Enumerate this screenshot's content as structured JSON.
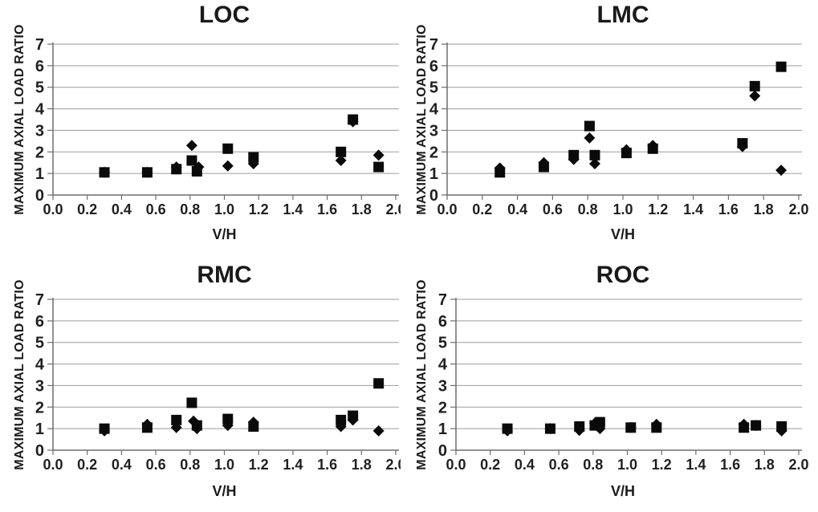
{
  "page": {
    "background": "#ffffff"
  },
  "style": {
    "marker_color": "#0a0a0a",
    "gridline_color": "#9b9b9b",
    "axis_color": "#6e6e6e",
    "text_color": "#1f1f1f"
  },
  "chart_data": [
    {
      "id": "loc",
      "type": "scatter",
      "title": "LOC",
      "xlabel": "V/H",
      "ylabel": "MAXIMUM AXIAL LOAD RATIO",
      "xlim": [
        0.0,
        2.0
      ],
      "ylim": [
        0,
        7
      ],
      "grid": true,
      "legend": "none",
      "x_tick_labels": [
        "0.0",
        "0.2",
        "0.4",
        "0.6",
        "0.8",
        "1.0",
        "1.2",
        "1.4",
        "1.6",
        "1.8",
        "2.0"
      ],
      "y_tick_labels": [
        "0",
        "1",
        "2",
        "3",
        "4",
        "5",
        "6",
        "7"
      ],
      "series": [
        {
          "name": "square-markers",
          "marker": "square",
          "points": [
            [
              0.3,
              1.05
            ],
            [
              0.55,
              1.05
            ],
            [
              0.72,
              1.2
            ],
            [
              0.81,
              1.6
            ],
            [
              0.84,
              1.1
            ],
            [
              1.02,
              2.15
            ],
            [
              1.17,
              1.75
            ],
            [
              1.68,
              2.0
            ],
            [
              1.75,
              3.5
            ],
            [
              1.9,
              1.3
            ]
          ]
        },
        {
          "name": "diamond-markers",
          "marker": "diamond",
          "points": [
            [
              0.3,
              1.05
            ],
            [
              0.55,
              1.05
            ],
            [
              0.72,
              1.3
            ],
            [
              0.81,
              2.3
            ],
            [
              0.85,
              1.3
            ],
            [
              1.02,
              1.35
            ],
            [
              1.17,
              1.45
            ],
            [
              1.68,
              1.6
            ],
            [
              1.75,
              3.4
            ],
            [
              1.9,
              1.85
            ]
          ]
        }
      ]
    },
    {
      "id": "lmc",
      "type": "scatter",
      "title": "LMC",
      "xlabel": "V/H",
      "ylabel": "MAXIMUM AXIAL LOAD RATIO",
      "xlim": [
        0.0,
        2.0
      ],
      "ylim": [
        0,
        7
      ],
      "grid": true,
      "legend": "none",
      "x_tick_labels": [
        "0.0",
        "0.2",
        "0.4",
        "0.6",
        "0.8",
        "1.0",
        "1.2",
        "1.4",
        "1.6",
        "1.8",
        "2.0"
      ],
      "y_tick_labels": [
        "0",
        "1",
        "2",
        "3",
        "4",
        "5",
        "6",
        "7"
      ],
      "series": [
        {
          "name": "square-markers",
          "marker": "square",
          "points": [
            [
              0.3,
              1.05
            ],
            [
              0.55,
              1.3
            ],
            [
              0.72,
              1.85
            ],
            [
              0.81,
              3.2
            ],
            [
              0.84,
              1.85
            ],
            [
              1.02,
              1.95
            ],
            [
              1.17,
              2.15
            ],
            [
              1.68,
              2.4
            ],
            [
              1.75,
              5.05
            ],
            [
              1.9,
              5.95
            ]
          ]
        },
        {
          "name": "diamond-markers",
          "marker": "diamond",
          "points": [
            [
              0.3,
              1.25
            ],
            [
              0.55,
              1.5
            ],
            [
              0.72,
              1.65
            ],
            [
              0.81,
              2.65
            ],
            [
              0.84,
              1.45
            ],
            [
              1.02,
              2.1
            ],
            [
              1.17,
              2.3
            ],
            [
              1.68,
              2.25
            ],
            [
              1.75,
              4.6
            ],
            [
              1.9,
              1.15
            ]
          ]
        }
      ]
    },
    {
      "id": "rmc",
      "type": "scatter",
      "title": "RMC",
      "xlabel": "V/H",
      "ylabel": "MAXIMUM AXIAL LOAD RATIO",
      "xlim": [
        0.0,
        2.0
      ],
      "ylim": [
        0,
        7
      ],
      "grid": true,
      "legend": "none",
      "x_tick_labels": [
        "0.0",
        "0.2",
        "0.4",
        "0.6",
        "0.8",
        "1.0",
        "1.2",
        "1.4",
        "1.6",
        "1.8",
        "2.0"
      ],
      "y_tick_labels": [
        "0",
        "1",
        "2",
        "3",
        "4",
        "5",
        "6",
        "7"
      ],
      "series": [
        {
          "name": "square-markers",
          "marker": "square",
          "points": [
            [
              0.3,
              1.0
            ],
            [
              0.55,
              1.05
            ],
            [
              0.72,
              1.4
            ],
            [
              0.81,
              2.2
            ],
            [
              0.84,
              1.15
            ],
            [
              1.02,
              1.45
            ],
            [
              1.17,
              1.1
            ],
            [
              1.68,
              1.4
            ],
            [
              1.75,
              1.6
            ],
            [
              1.9,
              3.1
            ]
          ]
        },
        {
          "name": "diamond-markers",
          "marker": "diamond",
          "points": [
            [
              0.3,
              0.9
            ],
            [
              0.55,
              1.2
            ],
            [
              0.72,
              1.05
            ],
            [
              0.82,
              1.35
            ],
            [
              0.84,
              1.0
            ],
            [
              1.02,
              1.15
            ],
            [
              1.17,
              1.3
            ],
            [
              1.68,
              1.1
            ],
            [
              1.75,
              1.4
            ],
            [
              1.9,
              0.9
            ]
          ]
        }
      ]
    },
    {
      "id": "roc",
      "type": "scatter",
      "title": "ROC",
      "xlabel": "V/H",
      "ylabel": "MAXIMUM AXIAL LOAD RATIO",
      "xlim": [
        0.0,
        2.0
      ],
      "ylim": [
        0,
        7
      ],
      "grid": true,
      "legend": "none",
      "x_tick_labels": [
        "0.0",
        "0.2",
        "0.4",
        "0.6",
        "0.8",
        "1.0",
        "1.2",
        "1.4",
        "1.6",
        "1.8",
        "2.0"
      ],
      "y_tick_labels": [
        "0",
        "1",
        "2",
        "3",
        "4",
        "5",
        "6",
        "7"
      ],
      "series": [
        {
          "name": "square-markers",
          "marker": "square",
          "points": [
            [
              0.3,
              1.0
            ],
            [
              0.55,
              1.0
            ],
            [
              0.72,
              1.1
            ],
            [
              0.81,
              1.15
            ],
            [
              0.84,
              1.3
            ],
            [
              1.02,
              1.05
            ],
            [
              1.17,
              1.05
            ],
            [
              1.68,
              1.05
            ],
            [
              1.75,
              1.15
            ],
            [
              1.9,
              1.1
            ]
          ]
        },
        {
          "name": "diamond-markers",
          "marker": "diamond",
          "points": [
            [
              0.3,
              0.9
            ],
            [
              0.55,
              1.0
            ],
            [
              0.72,
              0.92
            ],
            [
              0.81,
              1.25
            ],
            [
              0.84,
              1.0
            ],
            [
              1.02,
              1.05
            ],
            [
              1.17,
              1.2
            ],
            [
              1.68,
              1.2
            ],
            [
              1.75,
              1.15
            ],
            [
              1.9,
              0.9
            ]
          ]
        }
      ]
    }
  ]
}
